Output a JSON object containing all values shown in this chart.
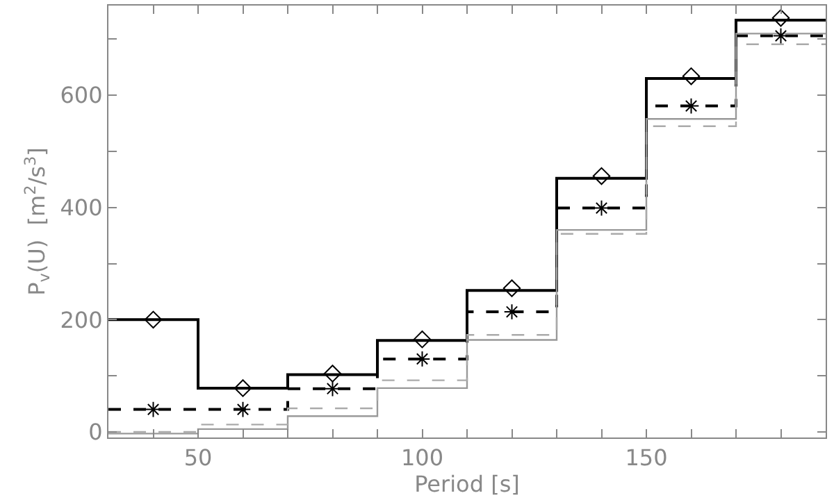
{
  "chart_data": {
    "type": "step",
    "xlabel": "Period [s]",
    "ylabel": "P$_{v}$(U)  [m$^{2}$/s$^{3}$]",
    "x": [
      40,
      60,
      80,
      100,
      120,
      140,
      160,
      180
    ],
    "xlim": [
      30,
      190
    ],
    "ylim": [
      -10,
      760
    ],
    "xticks": [
      {
        "value": 40,
        "label": null
      },
      50,
      {
        "value": 60,
        "label": null
      },
      {
        "value": 70,
        "label": null
      },
      {
        "value": 80,
        "label": null
      },
      {
        "value": 90,
        "label": null
      },
      100,
      {
        "value": 110,
        "label": null
      },
      {
        "value": 120,
        "label": null
      },
      {
        "value": 130,
        "label": null
      },
      {
        "value": 140,
        "label": null
      },
      150,
      {
        "value": 160,
        "label": null
      },
      {
        "value": 170,
        "label": null
      },
      {
        "value": 180,
        "label": null
      }
    ],
    "yticks": [
      0,
      {
        "value": 100,
        "label": null
      },
      200,
      {
        "value": 300,
        "label": null
      },
      400,
      {
        "value": 500,
        "label": null
      },
      600,
      {
        "value": 700,
        "label": null
      }
    ],
    "marker": "none",
    "series": [
      {
        "x": [
          30,
          50,
          70,
          90,
          110,
          130,
          150,
          170,
          190
        ],
        "color": "#000000",
        "line_style": "solid",
        "values": [
          200,
          78,
          102,
          163,
          252,
          452,
          630,
          734,
          734
        ]
      },
      {
        "x": [
          30,
          50,
          70,
          90,
          110,
          130,
          150,
          170,
          190
        ],
        "color": "#000000",
        "line_style": "dashed",
        "values": [
          40,
          40,
          77,
          130,
          214,
          399,
          581,
          706,
          706
        ]
      },
      {
        "x": [
          30,
          50,
          70,
          90,
          110,
          130,
          150,
          170,
          190
        ],
        "color": "#999999",
        "line_style": "solid",
        "values": [
          -3,
          5,
          28,
          78,
          164,
          360,
          558,
          710,
          710
        ]
      },
      {
        "x": [
          30,
          50,
          70,
          90,
          110,
          130,
          150,
          170,
          190
        ],
        "color": "#aaaaaa",
        "line_style": "dashed",
        "values": [
          0,
          13,
          42,
          92,
          173,
          353,
          545,
          691,
          691
        ]
      },
      {
        "type": "scatter",
        "color": "#000000",
        "marker": "diamond",
        "values": [
          200,
          78,
          104,
          165,
          256,
          456,
          634,
          738
        ]
      },
      {
        "type": "scatter",
        "color": "#000000",
        "marker": "cross",
        "values": [
          40,
          40,
          77,
          130,
          214,
          399,
          581,
          706
        ]
      }
    ]
  }
}
